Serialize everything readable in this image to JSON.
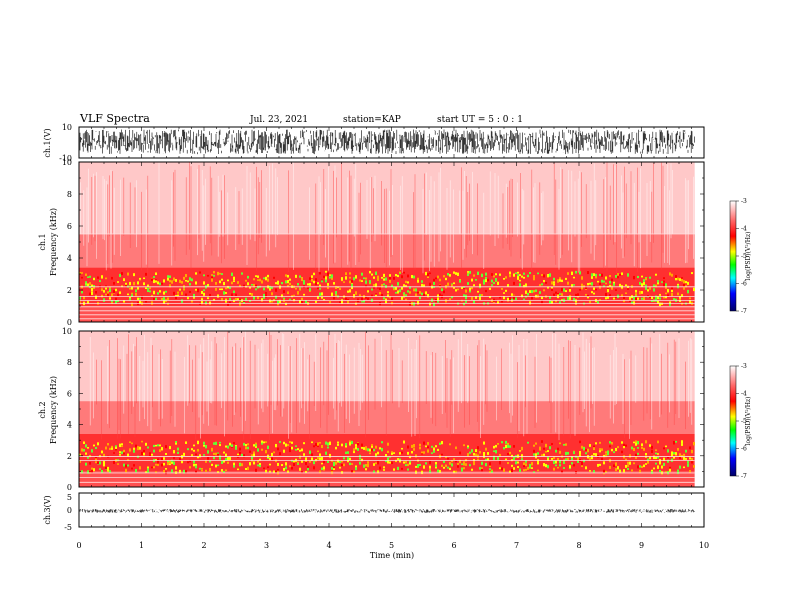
{
  "header": {
    "title": "VLF Spectra",
    "date": "Jul. 23, 2021",
    "station": "station=KAP",
    "start": "start UT =  5 : 0  : 1"
  },
  "chart_data": [
    {
      "type": "line",
      "name": "ch1-waveform",
      "ylabel": "ch.1(V)",
      "ylim": [
        -10,
        10
      ],
      "yticks": [
        "10",
        "-10"
      ],
      "xlim": [
        0,
        10
      ],
      "color": "#000000",
      "amplitude_note_range": [
        -10,
        10
      ]
    },
    {
      "type": "heatmap",
      "name": "ch1-spectrogram",
      "ylabel": "ch.1\nFrequency (kHz)",
      "ylabel_lines": [
        "ch.1",
        "Frequency (kHz)"
      ],
      "ylim": [
        0,
        10
      ],
      "yticks": [
        "0",
        "2",
        "4",
        "6",
        "8",
        "10"
      ],
      "xlim": [
        0,
        10
      ],
      "colorbar": {
        "label": "log(PSD)(V²/Hz)",
        "range": [
          -7,
          -3
        ],
        "ticks": [
          "-3",
          "-4",
          "-5",
          "-6",
          "-7"
        ],
        "colors": [
          "#ffffff",
          "#ff0000",
          "#ffff00",
          "#00ff00",
          "#00ffff",
          "#0000ff",
          "#000066"
        ]
      },
      "data_extent_min": 9.85,
      "bands": [
        {
          "from": 0,
          "to": 1.2,
          "level": "red-yellow"
        },
        {
          "from": 1.2,
          "to": 3.2,
          "level": "yellow-green"
        },
        {
          "from": 3.2,
          "to": 5.5,
          "level": "red"
        },
        {
          "from": 5.5,
          "to": 10,
          "level": "light-red"
        }
      ]
    },
    {
      "type": "heatmap",
      "name": "ch2-spectrogram",
      "ylabel": "ch.2\nFrequency (kHz)",
      "ylabel_lines": [
        "ch.2",
        "Frequency (kHz)"
      ],
      "ylim": [
        0,
        10
      ],
      "yticks": [
        "0",
        "2",
        "4",
        "6",
        "8",
        "10"
      ],
      "xlim": [
        0,
        10
      ],
      "colorbar": {
        "label": "log(PSD)(V²/Hz)",
        "range": [
          -7,
          -3
        ],
        "ticks": [
          "-3",
          "-4",
          "-5",
          "-6",
          "-7"
        ],
        "colors": [
          "#ffffff",
          "#ff0000",
          "#ffff00",
          "#00ff00",
          "#00ffff",
          "#0000ff",
          "#000066"
        ]
      },
      "data_extent_min": 9.85,
      "bands": [
        {
          "from": 0,
          "to": 1.0,
          "level": "red-yellow"
        },
        {
          "from": 1.0,
          "to": 3.0,
          "level": "yellow-green"
        },
        {
          "from": 3.0,
          "to": 5.5,
          "level": "red"
        },
        {
          "from": 5.5,
          "to": 10,
          "level": "light-red"
        }
      ]
    },
    {
      "type": "line",
      "name": "ch3-waveform",
      "ylabel": "ch.3(V)",
      "ylim": [
        -5,
        5
      ],
      "yticks": [
        "5",
        "0",
        "-5"
      ],
      "xlim": [
        0,
        10
      ],
      "xlabel": "Time (min)",
      "xticks": [
        "0",
        "1",
        "2",
        "3",
        "4",
        "5",
        "6",
        "7",
        "8",
        "9",
        "10"
      ],
      "color": "#000000",
      "amplitude_note_range": [
        -0.8,
        0.3
      ]
    }
  ]
}
